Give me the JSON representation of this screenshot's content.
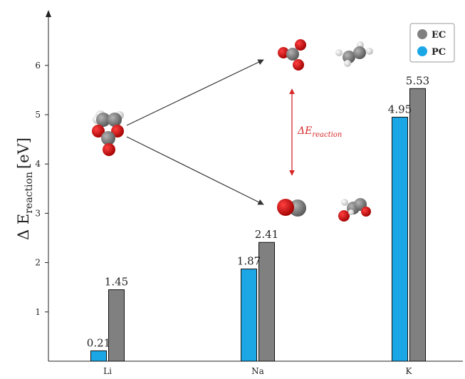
{
  "chart_data": {
    "type": "bar",
    "categories": [
      "Li",
      "Na",
      "K"
    ],
    "series": [
      {
        "name": "PC",
        "values": [
          0.21,
          1.87,
          4.95
        ],
        "color": "#1ba7e6"
      },
      {
        "name": "EC",
        "values": [
          1.45,
          2.41,
          5.53
        ],
        "color": "#808080"
      }
    ],
    "data_labels": {
      "PC": [
        "0.21",
        "1.87",
        "4.95"
      ],
      "EC": [
        "1.45",
        "2.41",
        "5.53"
      ]
    },
    "title": "",
    "xlabel": "",
    "ylabel": "Δ E",
    "ylabel_subscript": "reaction",
    "ylabel_unit": "[eV]",
    "ylim": [
      0,
      7
    ],
    "yticks": [
      "1",
      "2",
      "3",
      "4",
      "5",
      "6"
    ],
    "grid": false,
    "legend_placement": "top-right",
    "legend_entries": [
      "EC",
      "PC"
    ],
    "annotation": {
      "symbol": "ΔE",
      "subscript": "reaction",
      "color": "#d62728"
    }
  }
}
